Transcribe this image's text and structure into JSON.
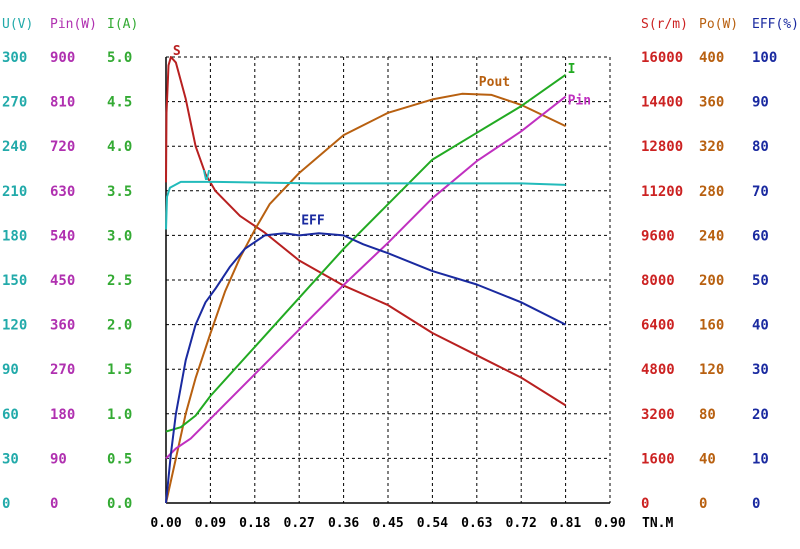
{
  "chart_data": {
    "type": "line",
    "grid": true,
    "x_axis": {
      "unit": "TN.M",
      "range": [
        0,
        0.9
      ],
      "ticks": [
        "0.00",
        "0.09",
        "0.18",
        "0.27",
        "0.36",
        "0.45",
        "0.54",
        "0.63",
        "0.72",
        "0.81",
        "0.90"
      ]
    },
    "axes": [
      {
        "id": "U",
        "header": "U(V)",
        "side": "left",
        "color": "#22aaaa",
        "range": [
          0,
          300
        ],
        "ticks": [
          "0",
          "30",
          "60",
          "90",
          "120",
          "150",
          "180",
          "210",
          "240",
          "270",
          "300"
        ]
      },
      {
        "id": "Pin",
        "header": "Pin(W)",
        "side": "left",
        "color": "#b030b0",
        "range": [
          0,
          900
        ],
        "ticks": [
          "0",
          "90",
          "180",
          "270",
          "360",
          "450",
          "540",
          "630",
          "720",
          "810",
          "900"
        ]
      },
      {
        "id": "I",
        "header": "I(A)",
        "side": "left",
        "color": "#33aa33",
        "range": [
          0,
          5
        ],
        "ticks": [
          "0.0",
          "0.5",
          "1.0",
          "1.5",
          "2.0",
          "2.5",
          "3.0",
          "3.5",
          "4.0",
          "4.5",
          "5.0"
        ]
      },
      {
        "id": "S",
        "header": "S(r/m)",
        "side": "right",
        "color": "#cc2222",
        "range": [
          0,
          16000
        ],
        "ticks": [
          "0",
          "1600",
          "3200",
          "4800",
          "6400",
          "8000",
          "9600",
          "11200",
          "12800",
          "14400",
          "16000"
        ]
      },
      {
        "id": "Po",
        "header": "Po(W)",
        "side": "right",
        "color": "#b86010",
        "range": [
          0,
          400
        ],
        "ticks": [
          "0",
          "40",
          "80",
          "120",
          "160",
          "200",
          "240",
          "280",
          "320",
          "360",
          "400"
        ]
      },
      {
        "id": "EFF",
        "header": "EFF(%)",
        "side": "right",
        "color": "#1a2aa0",
        "range": [
          0,
          100
        ],
        "ticks": [
          "0",
          "10",
          "20",
          "30",
          "40",
          "50",
          "60",
          "70",
          "80",
          "90",
          "100"
        ]
      }
    ],
    "series": [
      {
        "name": "S",
        "axis": "S",
        "color": "#b82020",
        "label_at": [
          0.01,
          16000
        ],
        "points": [
          [
            0,
            11500
          ],
          [
            0.001,
            14000
          ],
          [
            0.005,
            15700
          ],
          [
            0.01,
            16000
          ],
          [
            0.02,
            15800
          ],
          [
            0.04,
            14500
          ],
          [
            0.06,
            12800
          ],
          [
            0.08,
            11800
          ],
          [
            0.1,
            11200
          ],
          [
            0.15,
            10300
          ],
          [
            0.2,
            9700
          ],
          [
            0.27,
            8700
          ],
          [
            0.36,
            7800
          ],
          [
            0.45,
            7100
          ],
          [
            0.54,
            6100
          ],
          [
            0.63,
            5300
          ],
          [
            0.72,
            4500
          ],
          [
            0.81,
            3500
          ]
        ]
      },
      {
        "name": "Pout",
        "axis": "Po",
        "color": "#b86010",
        "label_at": [
          0.63,
          372
        ],
        "points": [
          [
            0,
            0
          ],
          [
            0.02,
            40
          ],
          [
            0.04,
            80
          ],
          [
            0.06,
            112
          ],
          [
            0.09,
            152
          ],
          [
            0.12,
            190
          ],
          [
            0.15,
            220
          ],
          [
            0.18,
            245
          ],
          [
            0.21,
            268
          ],
          [
            0.27,
            296
          ],
          [
            0.36,
            330
          ],
          [
            0.45,
            350
          ],
          [
            0.54,
            362
          ],
          [
            0.6,
            367
          ],
          [
            0.66,
            366
          ],
          [
            0.72,
            357
          ],
          [
            0.81,
            338
          ]
        ]
      },
      {
        "name": "Pin",
        "axis": "Pin",
        "color": "#c030c0",
        "label_at": [
          0.81,
          800
        ],
        "points": [
          [
            0,
            90
          ],
          [
            0.02,
            110
          ],
          [
            0.05,
            130
          ],
          [
            0.09,
            170
          ],
          [
            0.18,
            260
          ],
          [
            0.27,
            350
          ],
          [
            0.36,
            440
          ],
          [
            0.45,
            525
          ],
          [
            0.54,
            615
          ],
          [
            0.63,
            690
          ],
          [
            0.72,
            750
          ],
          [
            0.81,
            820
          ]
        ]
      },
      {
        "name": "I",
        "axis": "I",
        "color": "#22aa22",
        "label_at": [
          0.81,
          4.8
        ],
        "points": [
          [
            0,
            0.8
          ],
          [
            0.03,
            0.85
          ],
          [
            0.06,
            0.98
          ],
          [
            0.09,
            1.2
          ],
          [
            0.18,
            1.75
          ],
          [
            0.27,
            2.3
          ],
          [
            0.36,
            2.85
          ],
          [
            0.45,
            3.35
          ],
          [
            0.54,
            3.85
          ],
          [
            0.63,
            4.15
          ],
          [
            0.72,
            4.45
          ],
          [
            0.81,
            4.8
          ]
        ]
      },
      {
        "name": "V",
        "axis": "U",
        "color": "#22bbbb",
        "label_at": [
          0.07,
          216
        ],
        "points": [
          [
            0,
            184
          ],
          [
            0.002,
            206
          ],
          [
            0.008,
            212
          ],
          [
            0.03,
            216
          ],
          [
            0.1,
            216
          ],
          [
            0.3,
            215
          ],
          [
            0.54,
            215
          ],
          [
            0.72,
            215
          ],
          [
            0.81,
            214
          ]
        ]
      },
      {
        "name": "EFF",
        "axis": "EFF",
        "color": "#1a2aa0",
        "label_at": [
          0.27,
          62
        ],
        "points": [
          [
            0,
            0
          ],
          [
            0.01,
            11
          ],
          [
            0.02,
            20
          ],
          [
            0.04,
            32
          ],
          [
            0.06,
            40
          ],
          [
            0.08,
            45
          ],
          [
            0.1,
            48
          ],
          [
            0.13,
            53
          ],
          [
            0.16,
            57
          ],
          [
            0.2,
            60
          ],
          [
            0.24,
            60.5
          ],
          [
            0.27,
            60
          ],
          [
            0.31,
            60.5
          ],
          [
            0.36,
            60
          ],
          [
            0.4,
            58
          ],
          [
            0.45,
            56
          ],
          [
            0.54,
            52
          ],
          [
            0.63,
            49
          ],
          [
            0.72,
            45
          ],
          [
            0.81,
            40
          ]
        ]
      }
    ]
  }
}
